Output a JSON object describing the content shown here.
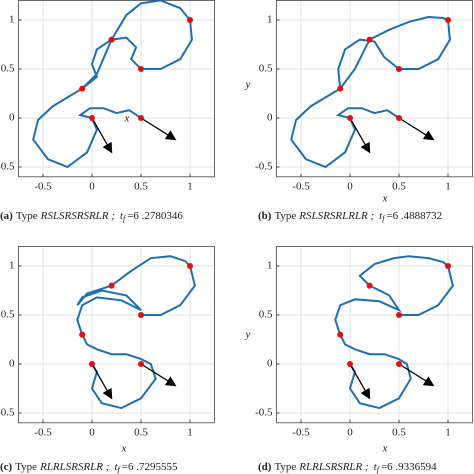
{
  "chart_data": [
    {
      "type": "line",
      "xlabel": "x",
      "caption": {
        "label": "(a)",
        "prefix": "Type",
        "maneuver": "RSLSRSRSRLR ;",
        "time_symbol": "t",
        "time_subscript": "f",
        "time": "=6 .2780346"
      },
      "xlim": [
        -0.75,
        1.25
      ],
      "ylim": [
        -0.6,
        1.2
      ],
      "xticks": [
        -0.5,
        0,
        0.5,
        1
      ],
      "yticks": [
        -0.5,
        0,
        0.5,
        1
      ],
      "grid": true,
      "series": [
        {
          "color": "#1f6fb0",
          "x": [
            0.5,
            0.38,
            0.25,
            0.12,
            -0.02,
            -0.12,
            0,
            0.05,
            -0.05,
            -0.25,
            -0.45,
            -0.6,
            -0.55,
            -0.4,
            -0.1,
            0.05,
            0.2,
            0.35,
            0.5,
            0.7,
            0.9,
            1,
            1.02,
            0.9,
            0.7,
            0.5,
            0.4,
            0.45,
            0.35,
            0.2,
            0.05,
            0,
            0.05,
            -0.1
          ],
          "values": [
            0,
            0.08,
            0.05,
            0.1,
            0.1,
            0.03,
            0,
            -0.12,
            -0.35,
            -0.5,
            -0.42,
            -0.22,
            -0.02,
            0.12,
            0.3,
            0.45,
            0.8,
            1.05,
            1.17,
            1.2,
            1.12,
            1,
            0.8,
            0.6,
            0.5,
            0.5,
            0.6,
            0.72,
            0.82,
            0.8,
            0.7,
            0.55,
            0.42,
            0.3
          ]
        }
      ],
      "points": {
        "color": "#e01010",
        "x": [
          0,
          0.5,
          -0.1,
          0.2,
          0.5,
          1
        ],
        "values": [
          0,
          0,
          0.3,
          0.8,
          0.5,
          1
        ]
      },
      "arrows": [
        {
          "x": [
            0,
            0.2
          ],
          "values": [
            0,
            -0.35
          ]
        },
        {
          "x": [
            0.5,
            0.85
          ],
          "values": [
            0,
            -0.22
          ]
        }
      ]
    },
    {
      "type": "line",
      "xlabel": "x",
      "ylabel": "y",
      "caption": {
        "label": "(b)",
        "prefix": "Type",
        "maneuver": "RSLSRSRLRLR ;",
        "time_symbol": "t",
        "time_subscript": "f",
        "time": "=6 .4888732"
      },
      "xlim": [
        -0.75,
        1.25
      ],
      "ylim": [
        -0.6,
        1.2
      ],
      "xticks": [
        -0.5,
        0,
        0.5,
        1
      ],
      "yticks": [
        -0.5,
        0,
        0.5,
        1
      ],
      "grid": true,
      "series": [
        {
          "color": "#1f6fb0",
          "x": [
            0.5,
            0.38,
            0.25,
            0.12,
            -0.02,
            -0.12,
            0,
            0.05,
            -0.05,
            -0.25,
            -0.45,
            -0.6,
            -0.55,
            -0.4,
            -0.1,
            0.05,
            0.2,
            0.4,
            0.6,
            0.8,
            0.95,
            1,
            1.02,
            0.9,
            0.7,
            0.5,
            0.35,
            0.25,
            0.1,
            -0.05,
            -0.12,
            -0.1
          ],
          "values": [
            0,
            0.08,
            0.05,
            0.1,
            0.1,
            0.03,
            0,
            -0.12,
            -0.35,
            -0.5,
            -0.42,
            -0.22,
            -0.02,
            0.12,
            0.3,
            0.5,
            0.8,
            0.9,
            0.98,
            1.03,
            1.02,
            1,
            0.8,
            0.6,
            0.5,
            0.5,
            0.62,
            0.78,
            0.8,
            0.7,
            0.5,
            0.3
          ]
        }
      ],
      "points": {
        "color": "#e01010",
        "x": [
          0,
          0.5,
          -0.1,
          0.2,
          0.5,
          1
        ],
        "values": [
          0,
          0,
          0.3,
          0.8,
          0.5,
          1
        ]
      },
      "arrows": [
        {
          "x": [
            0,
            0.2
          ],
          "values": [
            0,
            -0.35
          ]
        },
        {
          "x": [
            0.5,
            0.85
          ],
          "values": [
            0,
            -0.22
          ]
        }
      ]
    },
    {
      "type": "line",
      "xlabel": "x",
      "caption": {
        "label": "(c)",
        "prefix": "Type",
        "maneuver": "RLRLSRSRLR ;",
        "time_symbol": "t",
        "time_subscript": "f",
        "time": "=6 .7295555"
      },
      "xlim": [
        -0.75,
        1.25
      ],
      "ylim": [
        -0.6,
        1.2
      ],
      "xticks": [
        -0.5,
        0,
        0.5,
        1
      ],
      "yticks": [
        -0.5,
        0,
        0.5,
        1
      ],
      "grid": true,
      "series": [
        {
          "color": "#1f6fb0",
          "x": [
            0,
            0.05,
            0,
            0.1,
            0.3,
            0.5,
            0.65,
            0.6,
            0.5,
            0.35,
            0.2,
            0.05,
            -0.05,
            -0.1,
            -0.15,
            -0.1,
            0.05,
            0.3,
            0.5,
            0.35,
            0.1,
            -0.1,
            -0.15,
            -0.05,
            0.2,
            0.4,
            0.6,
            0.8,
            0.95,
            1,
            1.05,
            0.9,
            0.7,
            0.5
          ],
          "values": [
            0,
            -0.08,
            -0.25,
            -0.4,
            -0.45,
            -0.35,
            -0.15,
            0,
            0.05,
            0.1,
            0.1,
            0.15,
            0.2,
            0.3,
            0.45,
            0.6,
            0.68,
            0.65,
            0.55,
            0.7,
            0.75,
            0.68,
            0.6,
            0.72,
            0.8,
            0.95,
            1.08,
            1.1,
            1.05,
            1,
            0.8,
            0.6,
            0.5,
            0.5
          ]
        }
      ],
      "points": {
        "color": "#e01010",
        "x": [
          0,
          0.5,
          -0.1,
          0.2,
          0.5,
          1
        ],
        "values": [
          0,
          0,
          0.3,
          0.8,
          0.5,
          1
        ]
      },
      "arrows": [
        {
          "x": [
            0,
            0.2
          ],
          "values": [
            0,
            -0.35
          ]
        },
        {
          "x": [
            0.5,
            0.85
          ],
          "values": [
            0,
            -0.22
          ]
        }
      ]
    },
    {
      "type": "line",
      "xlabel": "x",
      "ylabel": "y",
      "caption": {
        "label": "(d)",
        "prefix": "Type",
        "maneuver": "RLRLSRSRLR ;",
        "time_symbol": "t",
        "time_subscript": "f",
        "time": "=6 .9336594"
      },
      "xlim": [
        -0.75,
        1.25
      ],
      "ylim": [
        -0.6,
        1.2
      ],
      "xticks": [
        -0.5,
        0,
        0.5,
        1
      ],
      "yticks": [
        -0.5,
        0,
        0.5,
        1
      ],
      "grid": true,
      "series": [
        {
          "color": "#1f6fb0",
          "x": [
            0,
            0.05,
            0,
            0.1,
            0.3,
            0.5,
            0.62,
            0.58,
            0.5,
            0.35,
            0.2,
            0.05,
            -0.05,
            -0.1,
            -0.15,
            -0.1,
            0.05,
            0.3,
            0.5,
            0.4,
            0.2,
            0.1,
            0.25,
            0.45,
            0.6,
            0.8,
            0.95,
            1,
            1.05,
            0.9,
            0.7,
            0.5
          ],
          "values": [
            0,
            -0.08,
            -0.25,
            -0.4,
            -0.45,
            -0.35,
            -0.15,
            0,
            0.05,
            0.1,
            0.1,
            0.15,
            0.2,
            0.3,
            0.45,
            0.6,
            0.66,
            0.64,
            0.55,
            0.7,
            0.8,
            0.9,
            1.02,
            1.08,
            1.1,
            1.08,
            1.04,
            1,
            0.8,
            0.6,
            0.5,
            0.5
          ]
        }
      ],
      "points": {
        "color": "#e01010",
        "x": [
          0,
          0.5,
          -0.1,
          0.2,
          0.5,
          1
        ],
        "values": [
          0,
          0,
          0.3,
          0.8,
          0.5,
          1
        ]
      },
      "arrows": [
        {
          "x": [
            0,
            0.2
          ],
          "values": [
            0,
            -0.35
          ]
        },
        {
          "x": [
            0.5,
            0.85
          ],
          "values": [
            0,
            -0.22
          ]
        }
      ]
    }
  ]
}
